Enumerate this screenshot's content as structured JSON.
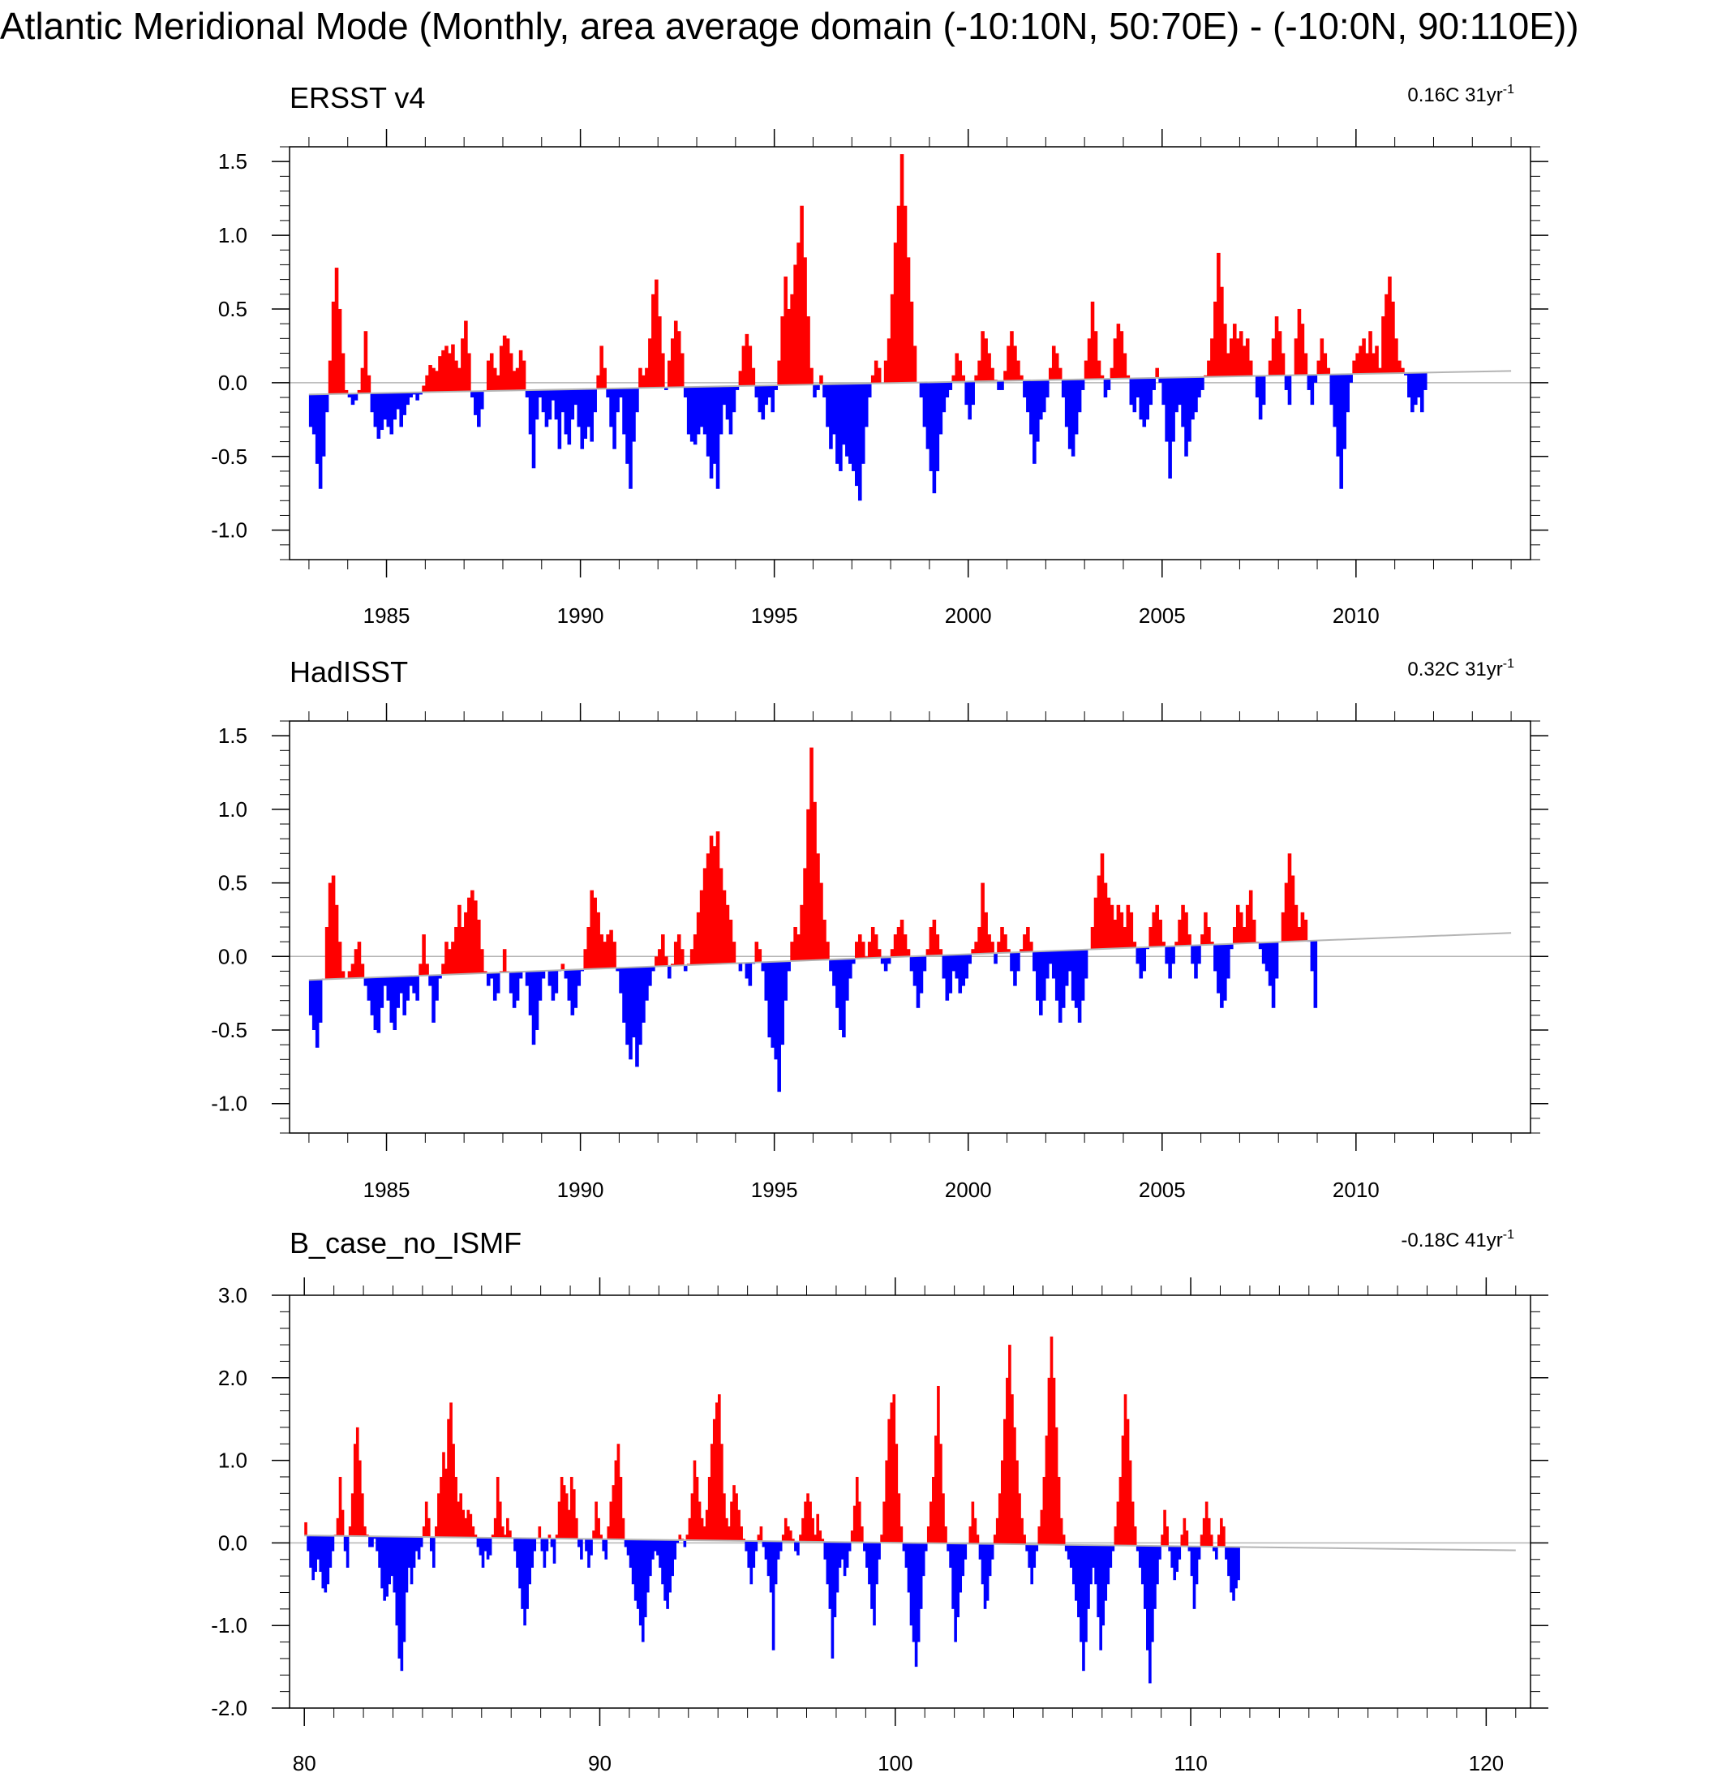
{
  "figure_title": "Atlantic Meridional Mode (Monthly, area average domain (-10:10N, 50:70E) - (-10:0N, 90:110E))",
  "colors": {
    "positive": "#ff0000",
    "negative": "#0000ff",
    "axis": "#000000",
    "zero_line": "#b4b4b4"
  },
  "chart_data": [
    {
      "type": "area",
      "title": "ERSST v4",
      "trend_label": {
        "value": "0.16C 31yr",
        "exponent": "-1"
      },
      "xlim": [
        1982.5,
        2014.5
      ],
      "ylim": [
        -1.2,
        1.6
      ],
      "x_ticks": [
        1985,
        1990,
        1995,
        2000,
        2005,
        2010
      ],
      "x_tick_labels": [
        "1985",
        "1990",
        "1995",
        "2000",
        "2005",
        "2010"
      ],
      "y_ticks": [
        -1.0,
        -0.5,
        0.0,
        0.5,
        1.0,
        1.5
      ],
      "y_tick_labels": [
        "-1.0",
        "-0.5",
        "0.0",
        "0.5",
        "1.0",
        "1.5"
      ],
      "trend_line": {
        "x": [
          1983.0,
          2014.0
        ],
        "y": [
          -0.08,
          0.08
        ]
      },
      "x_start": 1983.0,
      "x_step": 0.0833,
      "values": [
        -0.3,
        -0.35,
        -0.55,
        -0.72,
        -0.5,
        -0.2,
        0.15,
        0.55,
        0.78,
        0.5,
        0.2,
        -0.05,
        -0.1,
        -0.15,
        -0.12,
        -0.05,
        0.1,
        0.35,
        0.05,
        -0.2,
        -0.3,
        -0.38,
        -0.32,
        -0.25,
        -0.3,
        -0.35,
        -0.25,
        -0.18,
        -0.3,
        -0.22,
        -0.15,
        -0.1,
        -0.08,
        -0.12,
        -0.08,
        -0.02,
        0.05,
        0.12,
        0.1,
        0.08,
        0.18,
        0.22,
        0.25,
        0.2,
        0.26,
        0.15,
        0.1,
        0.3,
        0.42,
        0.2,
        -0.1,
        -0.22,
        -0.3,
        -0.18,
        -0.05,
        0.15,
        0.2,
        0.1,
        0.05,
        0.25,
        0.32,
        0.3,
        0.2,
        0.08,
        0.1,
        0.22,
        0.15,
        -0.1,
        -0.35,
        -0.58,
        -0.25,
        -0.1,
        -0.2,
        -0.3,
        -0.25,
        -0.12,
        -0.25,
        -0.45,
        -0.2,
        -0.35,
        -0.42,
        -0.25,
        -0.15,
        -0.3,
        -0.45,
        -0.38,
        -0.3,
        -0.4,
        -0.2,
        0.05,
        0.25,
        0.1,
        -0.1,
        -0.3,
        -0.45,
        -0.2,
        -0.1,
        -0.35,
        -0.55,
        -0.72,
        -0.4,
        -0.2,
        0.1,
        0.05,
        0.1,
        0.3,
        0.6,
        0.7,
        0.45,
        0.2,
        -0.05,
        0.15,
        0.3,
        0.42,
        0.35,
        0.2,
        -0.1,
        -0.35,
        -0.4,
        -0.42,
        -0.35,
        -0.3,
        -0.35,
        -0.5,
        -0.65,
        -0.55,
        -0.72,
        -0.35,
        -0.15,
        -0.25,
        -0.35,
        -0.2,
        -0.05,
        0.08,
        0.25,
        0.33,
        0.25,
        0.1,
        -0.1,
        -0.2,
        -0.25,
        -0.15,
        -0.1,
        -0.2,
        -0.05,
        0.15,
        0.45,
        0.72,
        0.5,
        0.6,
        0.8,
        0.95,
        1.2,
        0.85,
        0.45,
        0.1,
        -0.1,
        -0.05,
        0.05,
        -0.1,
        -0.3,
        -0.45,
        -0.35,
        -0.55,
        -0.6,
        -0.42,
        -0.5,
        -0.55,
        -0.6,
        -0.7,
        -0.8,
        -0.55,
        -0.3,
        -0.1,
        0.05,
        0.15,
        0.1,
        0.0,
        0.15,
        0.3,
        0.6,
        0.95,
        1.2,
        1.55,
        1.2,
        0.85,
        0.55,
        0.25,
        0.0,
        -0.1,
        -0.3,
        -0.45,
        -0.6,
        -0.75,
        -0.6,
        -0.35,
        -0.2,
        -0.1,
        -0.05,
        0.05,
        0.2,
        0.15,
        0.05,
        -0.15,
        -0.25,
        -0.15,
        0.05,
        0.15,
        0.35,
        0.3,
        0.2,
        0.1,
        0.02,
        -0.05,
        -0.05,
        0.08,
        0.25,
        0.35,
        0.25,
        0.15,
        0.05,
        -0.1,
        -0.2,
        -0.35,
        -0.55,
        -0.4,
        -0.25,
        -0.2,
        -0.1,
        0.1,
        0.25,
        0.2,
        0.1,
        -0.1,
        -0.3,
        -0.45,
        -0.5,
        -0.35,
        -0.2,
        -0.05,
        0.15,
        0.3,
        0.55,
        0.35,
        0.15,
        0.05,
        -0.1,
        -0.05,
        0.1,
        0.3,
        0.4,
        0.35,
        0.2,
        0.05,
        -0.15,
        -0.2,
        -0.1,
        -0.25,
        -0.3,
        -0.25,
        -0.15,
        -0.05,
        0.1,
        0.0,
        -0.15,
        -0.4,
        -0.65,
        -0.4,
        -0.2,
        -0.15,
        -0.3,
        -0.5,
        -0.4,
        -0.25,
        -0.2,
        -0.1,
        -0.05,
        0.05,
        0.15,
        0.3,
        0.55,
        0.88,
        0.65,
        0.4,
        0.2,
        0.3,
        0.4,
        0.3,
        0.35,
        0.25,
        0.3,
        0.15,
        0.05,
        -0.1,
        -0.25,
        -0.15,
        0.05,
        0.15,
        0.3,
        0.45,
        0.35,
        0.2,
        -0.05,
        -0.15,
        0.05,
        0.3,
        0.5,
        0.4,
        0.2,
        -0.05,
        -0.15,
        0.0,
        0.15,
        0.3,
        0.2,
        0.1,
        -0.15,
        -0.3,
        -0.5,
        -0.72,
        -0.45,
        -0.2,
        0.0,
        0.15,
        0.2,
        0.25,
        0.3,
        0.2,
        0.35,
        0.2,
        0.25,
        0.1,
        0.45,
        0.6,
        0.72,
        0.55,
        0.3,
        0.15,
        0.1,
        0.05,
        -0.1,
        -0.2,
        -0.15,
        -0.1,
        -0.2,
        -0.05
      ]
    },
    {
      "type": "area",
      "title": "HadISST",
      "trend_label": {
        "value": "0.32C 31yr",
        "exponent": "-1"
      },
      "xlim": [
        1982.5,
        2014.5
      ],
      "ylim": [
        -1.2,
        1.6
      ],
      "x_ticks": [
        1985,
        1990,
        1995,
        2000,
        2005,
        2010
      ],
      "x_tick_labels": [
        "1985",
        "1990",
        "1995",
        "2000",
        "2005",
        "2010"
      ],
      "y_ticks": [
        -1.0,
        -0.5,
        0.0,
        0.5,
        1.0,
        1.5
      ],
      "y_tick_labels": [
        "-1.0",
        "-0.5",
        "0.0",
        "0.5",
        "1.0",
        "1.5"
      ],
      "trend_line": {
        "x": [
          1983.0,
          2014.0
        ],
        "y": [
          -0.16,
          0.16
        ]
      },
      "x_start": 1983.0,
      "x_step": 0.0833,
      "values": [
        -0.4,
        -0.5,
        -0.62,
        -0.45,
        -0.15,
        0.2,
        0.5,
        0.55,
        0.35,
        0.1,
        -0.1,
        -0.15,
        -0.1,
        -0.05,
        0.05,
        0.1,
        -0.05,
        -0.2,
        -0.3,
        -0.4,
        -0.5,
        -0.52,
        -0.35,
        -0.2,
        -0.3,
        -0.45,
        -0.5,
        -0.35,
        -0.25,
        -0.4,
        -0.3,
        -0.2,
        -0.25,
        -0.3,
        -0.05,
        0.15,
        -0.05,
        -0.2,
        -0.45,
        -0.3,
        -0.15,
        -0.05,
        0.1,
        0.05,
        0.1,
        0.2,
        0.35,
        0.2,
        0.3,
        0.4,
        0.45,
        0.38,
        0.25,
        0.05,
        -0.1,
        -0.2,
        -0.15,
        -0.3,
        -0.25,
        -0.1,
        0.05,
        -0.1,
        -0.25,
        -0.35,
        -0.3,
        -0.15,
        -0.1,
        -0.2,
        -0.4,
        -0.6,
        -0.5,
        -0.3,
        -0.15,
        -0.1,
        -0.2,
        -0.3,
        -0.25,
        -0.1,
        -0.05,
        -0.15,
        -0.3,
        -0.4,
        -0.35,
        -0.2,
        -0.1,
        0.05,
        0.2,
        0.45,
        0.4,
        0.3,
        0.15,
        0.1,
        0.15,
        0.18,
        0.1,
        -0.1,
        -0.25,
        -0.45,
        -0.6,
        -0.7,
        -0.55,
        -0.75,
        -0.6,
        -0.45,
        -0.3,
        -0.2,
        -0.1,
        0.0,
        0.05,
        0.15,
        0.0,
        -0.15,
        -0.05,
        0.1,
        0.15,
        0.05,
        -0.1,
        -0.05,
        0.05,
        0.15,
        0.3,
        0.45,
        0.6,
        0.7,
        0.82,
        0.75,
        0.85,
        0.6,
        0.45,
        0.35,
        0.25,
        0.1,
        -0.05,
        -0.1,
        -0.05,
        -0.15,
        -0.2,
        -0.05,
        0.1,
        0.05,
        -0.1,
        -0.3,
        -0.55,
        -0.62,
        -0.7,
        -0.92,
        -0.6,
        -0.3,
        -0.1,
        0.1,
        0.2,
        0.15,
        0.35,
        0.6,
        1.0,
        1.42,
        1.05,
        0.7,
        0.5,
        0.25,
        0.1,
        -0.1,
        -0.2,
        -0.35,
        -0.5,
        -0.55,
        -0.3,
        -0.15,
        -0.05,
        0.1,
        0.15,
        0.1,
        0.0,
        0.1,
        0.2,
        0.15,
        0.05,
        -0.05,
        -0.1,
        -0.05,
        0.05,
        0.15,
        0.2,
        0.25,
        0.15,
        0.05,
        -0.1,
        -0.2,
        -0.35,
        -0.25,
        -0.1,
        0.05,
        0.2,
        0.25,
        0.15,
        0.05,
        -0.15,
        -0.3,
        -0.25,
        -0.1,
        -0.15,
        -0.25,
        -0.2,
        -0.15,
        -0.05,
        0.05,
        0.1,
        0.2,
        0.5,
        0.3,
        0.15,
        0.1,
        -0.05,
        0.1,
        0.2,
        0.15,
        0.05,
        -0.1,
        -0.2,
        -0.1,
        0.05,
        0.15,
        0.2,
        0.1,
        -0.1,
        -0.3,
        -0.4,
        -0.3,
        -0.15,
        -0.05,
        -0.15,
        -0.3,
        -0.45,
        -0.35,
        -0.2,
        -0.1,
        -0.3,
        -0.35,
        -0.45,
        -0.3,
        -0.15,
        0.05,
        0.2,
        0.4,
        0.55,
        0.7,
        0.5,
        0.4,
        0.35,
        0.25,
        0.35,
        0.3,
        0.2,
        0.35,
        0.3,
        0.1,
        -0.05,
        -0.15,
        -0.1,
        0.05,
        0.2,
        0.3,
        0.35,
        0.25,
        0.1,
        -0.05,
        -0.15,
        -0.05,
        0.1,
        0.25,
        0.35,
        0.3,
        0.15,
        -0.05,
        -0.15,
        -0.05,
        0.15,
        0.3,
        0.2,
        0.1,
        -0.1,
        -0.25,
        -0.35,
        -0.3,
        -0.15,
        0.05,
        0.2,
        0.35,
        0.3,
        0.2,
        0.35,
        0.45,
        0.25,
        0.1,
        0.05,
        -0.05,
        -0.1,
        -0.2,
        -0.35,
        -0.15,
        0.1,
        0.3,
        0.5,
        0.7,
        0.55,
        0.35,
        0.2,
        0.3,
        0.25,
        0.1,
        -0.1,
        -0.35
      ]
    },
    {
      "type": "area",
      "title": "B_case_no_ISMF",
      "trend_label": {
        "value": "-0.18C 41yr",
        "exponent": "-1"
      },
      "xlim": [
        79.5,
        121.5
      ],
      "ylim": [
        -2.0,
        3.0
      ],
      "x_ticks": [
        80,
        90,
        100,
        110,
        120
      ],
      "x_tick_labels": [
        "80",
        "90",
        "100",
        "110",
        "120"
      ],
      "y_ticks": [
        -2.0,
        -1.0,
        0.0,
        1.0,
        2.0,
        3.0
      ],
      "y_tick_labels": [
        "-2.0",
        "-1.0",
        "0.0",
        "1.0",
        "2.0",
        "3.0"
      ],
      "trend_line": {
        "x": [
          80.0,
          121.0
        ],
        "y": [
          0.09,
          -0.09
        ]
      },
      "x_start": 80.0,
      "x_step": 0.0833,
      "values": [
        0.25,
        -0.1,
        -0.3,
        -0.45,
        -0.35,
        -0.2,
        -0.35,
        -0.55,
        -0.6,
        -0.5,
        -0.3,
        -0.1,
        0.1,
        0.3,
        0.8,
        0.4,
        -0.1,
        -0.3,
        0.2,
        0.6,
        1.2,
        1.4,
        1.0,
        0.6,
        0.2,
        0.1,
        -0.05,
        -0.05,
        0.05,
        -0.1,
        -0.3,
        -0.55,
        -0.7,
        -0.65,
        -0.5,
        -0.4,
        -0.6,
        -1.0,
        -1.4,
        -1.55,
        -1.2,
        -0.6,
        -0.3,
        -0.5,
        -0.3,
        -0.1,
        -0.2,
        -0.05,
        0.2,
        0.5,
        0.3,
        -0.1,
        -0.3,
        0.2,
        0.6,
        0.8,
        1.1,
        0.9,
        1.5,
        1.7,
        1.2,
        0.8,
        0.5,
        0.6,
        0.4,
        0.3,
        0.4,
        0.35,
        0.2,
        0.1,
        -0.05,
        -0.15,
        -0.3,
        -0.1,
        -0.2,
        -0.15,
        0.1,
        0.3,
        0.8,
        0.5,
        0.2,
        0.1,
        0.3,
        0.15,
        0.05,
        -0.1,
        -0.3,
        -0.55,
        -0.8,
        -1.0,
        -0.8,
        -0.5,
        -0.3,
        -0.1,
        0.05,
        0.2,
        -0.1,
        -0.3,
        -0.1,
        0.1,
        -0.05,
        -0.25,
        0.1,
        0.5,
        0.8,
        0.7,
        0.6,
        0.4,
        0.8,
        0.65,
        0.3,
        -0.05,
        -0.2,
        0.05,
        -0.1,
        -0.3,
        -0.15,
        0.15,
        0.5,
        0.3,
        0.1,
        -0.1,
        -0.2,
        0.2,
        0.5,
        0.7,
        1.0,
        1.2,
        0.8,
        0.3,
        -0.05,
        -0.15,
        -0.3,
        -0.5,
        -0.7,
        -0.8,
        -1.0,
        -1.2,
        -0.9,
        -0.6,
        -0.4,
        -0.2,
        -0.1,
        -0.15,
        -0.3,
        -0.5,
        -0.7,
        -0.8,
        -0.6,
        -0.4,
        -0.2,
        0.0,
        0.1,
        0.05,
        -0.05,
        0.1,
        0.3,
        0.6,
        1.0,
        0.8,
        0.5,
        0.3,
        0.2,
        0.4,
        0.8,
        1.2,
        1.5,
        1.7,
        1.8,
        1.2,
        0.6,
        0.3,
        0.2,
        0.5,
        0.7,
        0.6,
        0.4,
        0.2,
        0.05,
        -0.1,
        -0.3,
        -0.5,
        -0.3,
        -0.1,
        0.1,
        0.2,
        -0.05,
        -0.2,
        -0.4,
        -0.6,
        -1.3,
        -0.5,
        -0.2,
        -0.1,
        0.1,
        0.3,
        0.2,
        0.15,
        0.05,
        -0.1,
        -0.15,
        0.1,
        0.3,
        0.5,
        0.6,
        0.5,
        0.3,
        0.1,
        0.35,
        0.15,
        0.05,
        -0.2,
        -0.5,
        -0.8,
        -1.4,
        -0.9,
        -0.6,
        -0.3,
        -0.2,
        -0.4,
        -0.3,
        -0.1,
        0.15,
        0.45,
        0.8,
        0.5,
        0.2,
        -0.1,
        -0.3,
        -0.5,
        -0.8,
        -1.0,
        -0.5,
        -0.2,
        0.1,
        0.5,
        1.0,
        1.5,
        1.7,
        1.8,
        1.2,
        0.6,
        0.2,
        -0.1,
        -0.3,
        -0.6,
        -1.0,
        -1.2,
        -1.5,
        -1.2,
        -0.8,
        -0.4,
        -0.1,
        0.2,
        0.5,
        0.8,
        1.3,
        1.9,
        1.2,
        0.6,
        0.2,
        -0.1,
        -0.3,
        -0.8,
        -1.2,
        -0.9,
        -0.6,
        -0.4,
        -0.2,
        0.0,
        0.2,
        0.5,
        0.3,
        0.1,
        -0.2,
        -0.5,
        -0.8,
        -0.7,
        -0.4,
        -0.2,
        0.1,
        0.3,
        0.6,
        1.0,
        1.5,
        2.0,
        2.4,
        1.8,
        1.4,
        1.0,
        0.6,
        0.3,
        0.1,
        -0.1,
        -0.3,
        -0.5,
        -0.3,
        -0.1,
        0.2,
        0.4,
        0.8,
        1.3,
        2.0,
        2.5,
        2.0,
        1.4,
        0.8,
        0.3,
        0.1,
        -0.1,
        -0.2,
        -0.3,
        -0.5,
        -0.7,
        -0.9,
        -1.2,
        -1.55,
        -1.2,
        -0.8,
        -0.5,
        -0.3,
        -0.5,
        -0.9,
        -1.3,
        -1.0,
        -0.7,
        -0.5,
        -0.3,
        -0.1,
        0.2,
        0.5,
        0.8,
        1.3,
        1.8,
        1.5,
        1.0,
        0.5,
        0.2,
        -0.1,
        -0.3,
        -0.5,
        -0.8,
        -1.3,
        -1.7,
        -1.2,
        -0.8,
        -0.5,
        -0.2,
        0.1,
        0.4,
        0.2,
        -0.1,
        -0.3,
        -0.45,
        -0.35,
        -0.2,
        0.1,
        0.3,
        0.15,
        -0.1,
        -0.4,
        -0.8,
        -0.5,
        -0.2,
        0.1,
        0.3,
        0.5,
        0.3,
        0.1,
        -0.1,
        -0.2,
        0.1,
        0.3,
        0.2,
        -0.2,
        -0.4,
        -0.6,
        -0.7,
        -0.55,
        -0.45
      ]
    }
  ]
}
